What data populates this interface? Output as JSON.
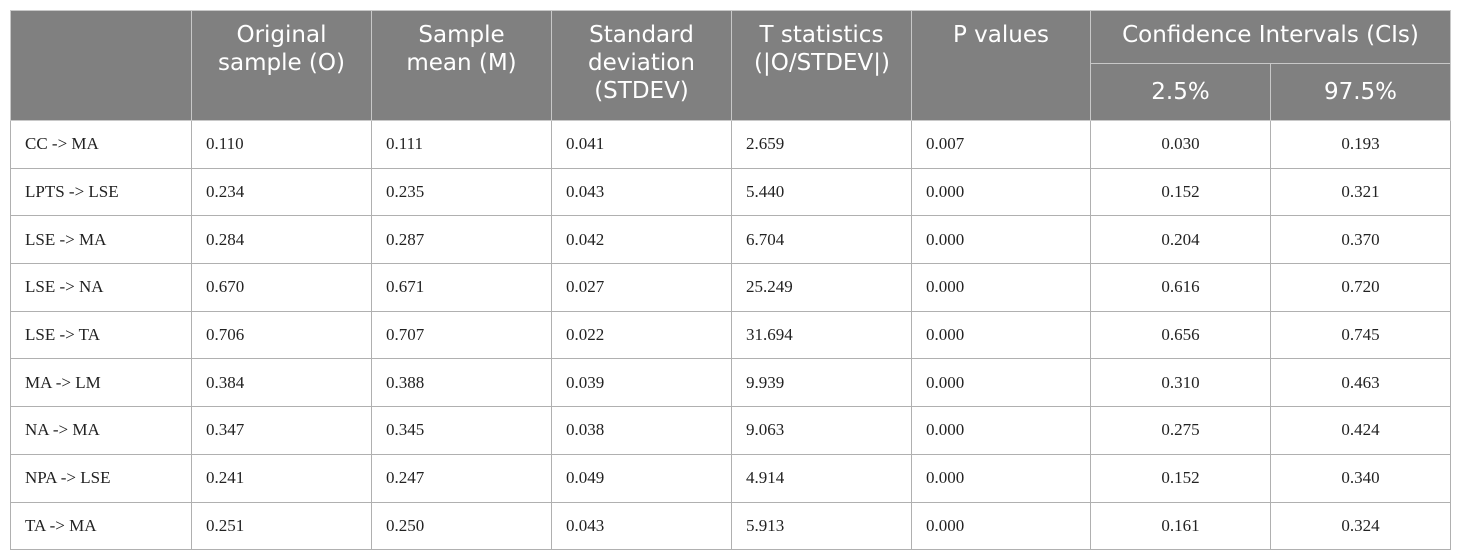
{
  "table": {
    "header": {
      "columns": [
        "Original sample (O)",
        "Sample mean (M)",
        "Standard deviation (STDEV)",
        "T statistics (|O/STDEV|)",
        "P values"
      ],
      "group": "Confidence Intervals (CIs)",
      "subcolumns": [
        "2.5%",
        "97.5%"
      ]
    },
    "rows": [
      [
        "CC -> MA",
        "0.110",
        "0.111",
        "0.041",
        "2.659",
        "0.007",
        "0.030",
        "0.193"
      ],
      [
        "LPTS -> LSE",
        "0.234",
        "0.235",
        "0.043",
        "5.440",
        "0.000",
        "0.152",
        "0.321"
      ],
      [
        "LSE -> MA",
        "0.284",
        "0.287",
        "0.042",
        "6.704",
        "0.000",
        "0.204",
        "0.370"
      ],
      [
        "LSE -> NA",
        "0.670",
        "0.671",
        "0.027",
        "25.249",
        "0.000",
        "0.616",
        "0.720"
      ],
      [
        "LSE -> TA",
        "0.706",
        "0.707",
        "0.022",
        "31.694",
        "0.000",
        "0.656",
        "0.745"
      ],
      [
        "MA -> LM",
        "0.384",
        "0.388",
        "0.039",
        "9.939",
        "0.000",
        "0.310",
        "0.463"
      ],
      [
        "NA -> MA",
        "0.347",
        "0.345",
        "0.038",
        "9.063",
        "0.000",
        "0.275",
        "0.424"
      ],
      [
        "NPA -> LSE",
        "0.241",
        "0.247",
        "0.049",
        "4.914",
        "0.000",
        "0.152",
        "0.340"
      ],
      [
        "TA -> MA",
        "0.251",
        "0.250",
        "0.043",
        "5.913",
        "0.000",
        "0.161",
        "0.324"
      ]
    ]
  }
}
